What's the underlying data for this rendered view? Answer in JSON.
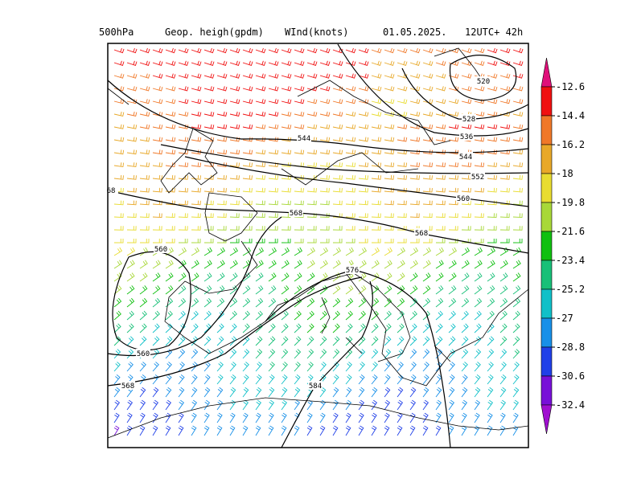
{
  "header": {
    "items": [
      "500hPa",
      "Geop. heigh(gpdm)",
      "WInd(knots)",
      "01.05.2025.",
      "12UTC+ 42h"
    ]
  },
  "map": {
    "contour_labels": [
      "520",
      "528",
      "536",
      "544",
      "552",
      "544",
      "560",
      "568",
      "568",
      "68",
      "576",
      "560",
      "560",
      "568",
      "584"
    ]
  },
  "colorbar": {
    "levels": [
      -12.6,
      -14.4,
      -16.2,
      -18,
      -19.8,
      -21.6,
      -23.4,
      -25.2,
      -27,
      -28.8,
      -30.6,
      -32.4
    ],
    "colors": [
      "#e0107a",
      "#f01010",
      "#f07828",
      "#e8a828",
      "#e8dc30",
      "#a8d838",
      "#10c010",
      "#18c078",
      "#10c0c8",
      "#1890e8",
      "#2040e8",
      "#7810d8",
      "#a010d0"
    ]
  }
}
